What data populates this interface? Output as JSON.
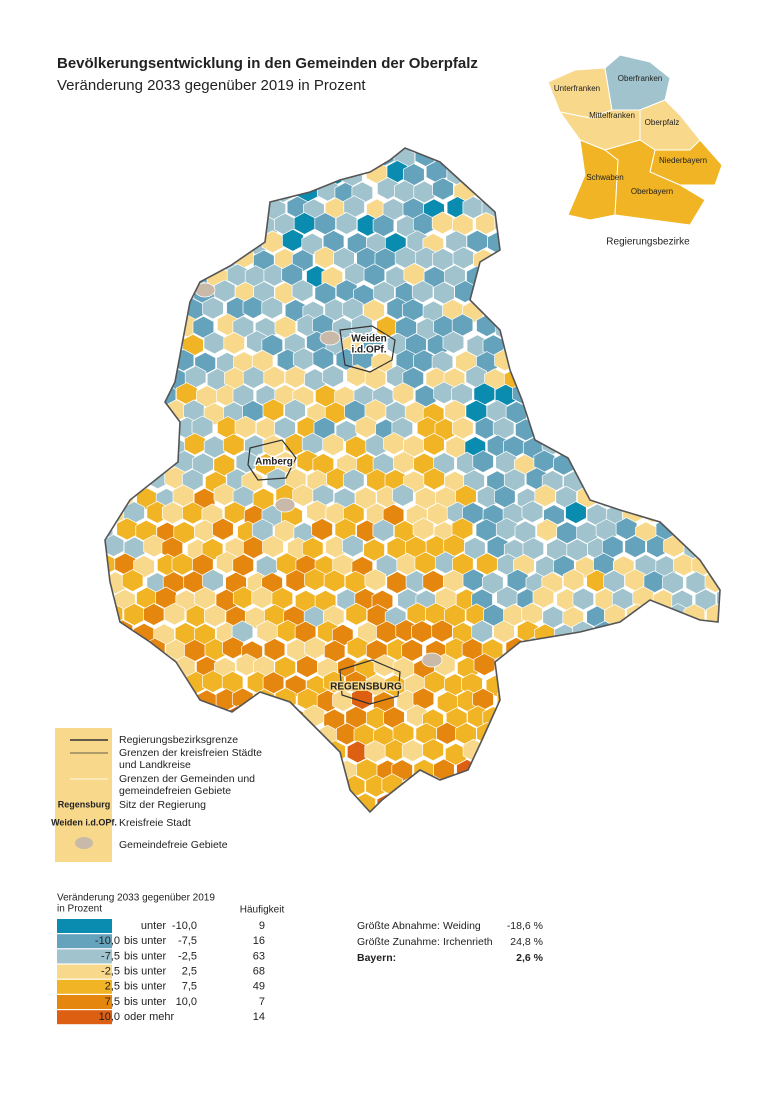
{
  "header": {
    "title": "Bevölkerungsentwicklung in den Gemeinden der Oberpfalz",
    "subtitle": "Veränderung 2033 gegenüber 2019 in Prozent"
  },
  "inset": {
    "labels": [
      "Unterfranken",
      "Oberfranken",
      "Mittelfranken",
      "Oberpfalz",
      "Niederbayern",
      "Schwaben",
      "Oberbayern"
    ],
    "caption": "Regierungsbezirke"
  },
  "map_labels": {
    "weiden": [
      "Weiden",
      "i.d.OPf."
    ],
    "amberg": "Amberg",
    "regensburg": "REGENSBURG"
  },
  "key": {
    "items": [
      {
        "label": [
          "Regierungsbezirksgrenze"
        ]
      },
      {
        "label": [
          "Grenzen der kreisfreien Städte",
          "und Landkreise"
        ]
      },
      {
        "label": [
          "Grenzen der Gemeinden und",
          "gemeindefreien Gebiete"
        ]
      },
      {
        "sample": "Regensburg",
        "label": [
          "Sitz der Regierung"
        ]
      },
      {
        "sample": "Weiden i.d.OPf.",
        "label": [
          "Kreisfreie Stadt"
        ]
      },
      {
        "label": [
          "Gemeindefreie Gebiete"
        ]
      }
    ]
  },
  "legend": {
    "title": "Veränderung 2033 gegenüber 2019",
    "unit": "in Prozent",
    "count_header": "Häufigkeit",
    "classes": [
      {
        "color": "#0a8bb0",
        "connector": "unter",
        "to": "-10,0",
        "count": 9
      },
      {
        "color": "#65a3bd",
        "from": "-10,0",
        "connector": "bis unter",
        "to": "-7,5",
        "count": 16
      },
      {
        "color": "#a0c3cd",
        "from": "-7,5",
        "connector": "bis unter",
        "to": "-2,5",
        "count": 63
      },
      {
        "color": "#f8d98b",
        "from": "-2,5",
        "connector": "bis unter",
        "to": "2,5",
        "count": 68
      },
      {
        "color": "#f0b424",
        "from": "2,5",
        "connector": "bis unter",
        "to": "7,5",
        "count": 49
      },
      {
        "color": "#e5870f",
        "from": "7,5",
        "connector": "bis unter",
        "to": "10,0",
        "count": 7
      },
      {
        "color": "#dc5f12",
        "from": "10,0",
        "connector": "oder mehr",
        "count": 14
      }
    ]
  },
  "stats": [
    {
      "label": "Größte Abnahme:",
      "place": "Weiding",
      "value": "-18,6 %"
    },
    {
      "label": "Größte Zunahme:",
      "place": "Irchenrieth",
      "value": "24,8 %"
    },
    {
      "label": "Bayern:",
      "value": "2,6 %"
    }
  ]
}
